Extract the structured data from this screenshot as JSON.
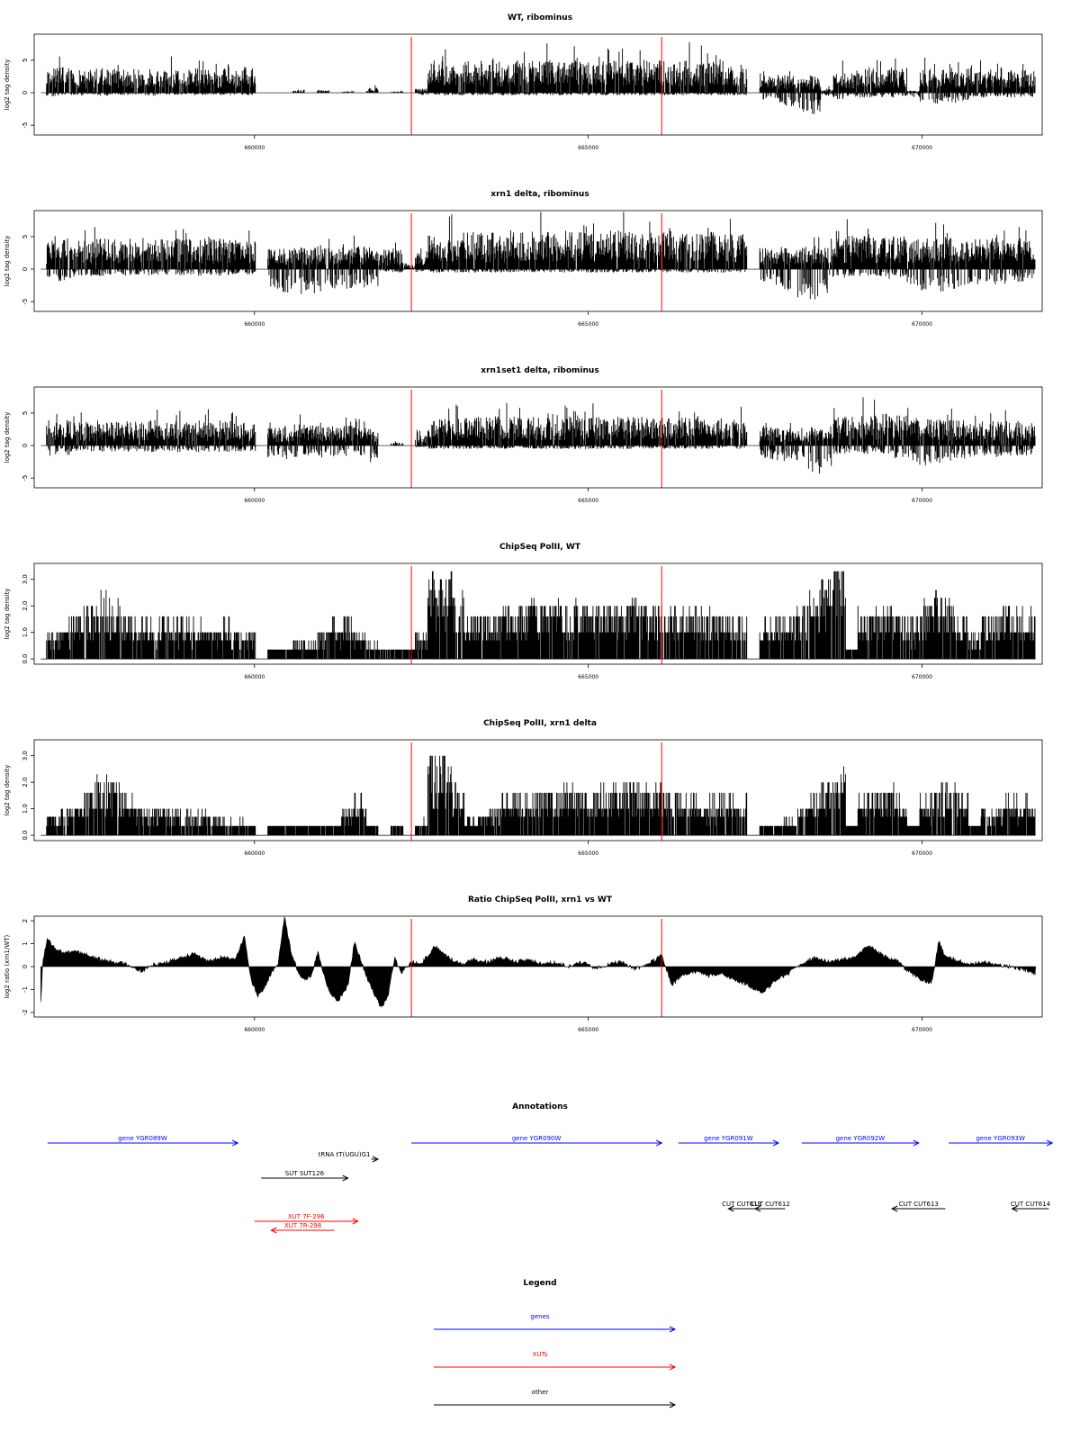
{
  "chart_data": [
    {
      "type": "bar",
      "title": "WT, ribominus",
      "ylabel": "log2 tag density",
      "xlabel": "",
      "xlim": [
        656700,
        671800
      ],
      "ylim": [
        -6.5,
        9.0
      ],
      "yticks": [
        -5,
        0,
        5
      ],
      "ytick_labels": [
        "-5",
        "0",
        "5"
      ],
      "xticks": [
        660000,
        665000,
        670000
      ],
      "xtick_labels": [
        "660000",
        "665000",
        "670000"
      ],
      "vlines": [
        662350,
        666100
      ],
      "vline_color": "#ff0000",
      "density": [
        0.0,
        3.5,
        3.7,
        3.3,
        3.0,
        3.5,
        3.2,
        3.4,
        3.3,
        3.5,
        3.2,
        3.4,
        3.3,
        3.5,
        3.1,
        3.4,
        3.3,
        3.5,
        0.0,
        0.0,
        0.0,
        0.3,
        0.0,
        0.5,
        0.0,
        0.2,
        0.0,
        0.7,
        0.0,
        0.2,
        0.0,
        0.6,
        4.1,
        4.4,
        4.2,
        4.7,
        4.5,
        4.6,
        4.5,
        4.7,
        4.5,
        4.6,
        4.5,
        4.7,
        4.5,
        4.6,
        4.5,
        4.7,
        4.5,
        4.6,
        4.5,
        4.7,
        4.5,
        4.6,
        4.5,
        4.7,
        4.5,
        4.0,
        0.0,
        2.5,
        2.3,
        2.5,
        2.4,
        2.5,
        0.6,
        3.5,
        3.3,
        3.6,
        3.4,
        3.5,
        3.4,
        0.3,
        3.7,
        3.4,
        3.6,
        3.4,
        3.5,
        3.4,
        3.6,
        3.3,
        3.5,
        3.2
      ],
      "negative": [
        0.0,
        0.4,
        0.2,
        0.3,
        0.2,
        0.4,
        0.2,
        0.3,
        0.2,
        0.4,
        0.2,
        0.3,
        0.2,
        0.3,
        0.2,
        0.3,
        0.2,
        0.3,
        0.0,
        0.0,
        0.0,
        0.0,
        0.0,
        0.0,
        0.0,
        0.0,
        0.0,
        0.0,
        0.0,
        0.0,
        0.0,
        0.3,
        0.3,
        0.3,
        0.3,
        0.3,
        0.3,
        0.3,
        0.3,
        0.3,
        0.3,
        0.3,
        0.3,
        0.3,
        0.3,
        0.3,
        0.3,
        0.3,
        0.3,
        0.3,
        0.3,
        0.3,
        0.3,
        0.3,
        0.3,
        0.3,
        0.3,
        0.3,
        0.0,
        0.9,
        1.2,
        1.6,
        2.4,
        2.6,
        0.4,
        0.8,
        0.5,
        0.6,
        0.5,
        0.6,
        0.4,
        0.6,
        1.2,
        1.4,
        1.3,
        1.0,
        0.8,
        0.6,
        0.5,
        0.6,
        0.5,
        0.5
      ],
      "peak_max": 9.0,
      "peak_min": -4.0
    },
    {
      "type": "bar",
      "title": "xrn1 delta, ribominus",
      "ylabel": "log2 tag density",
      "xlabel": "",
      "xlim": [
        656700,
        671800
      ],
      "ylim": [
        -6.5,
        9.0
      ],
      "yticks": [
        -5,
        0,
        5
      ],
      "ytick_labels": [
        "-5",
        "0",
        "5"
      ],
      "xticks": [
        660000,
        665000,
        670000
      ],
      "xtick_labels": [
        "660000",
        "665000",
        "670000"
      ],
      "vlines": [
        662350,
        666100
      ],
      "vline_color": "#ff0000",
      "density": [
        0.0,
        4.0,
        4.3,
        4.2,
        4.1,
        4.3,
        4.2,
        4.3,
        4.2,
        4.3,
        4.2,
        4.3,
        4.2,
        4.3,
        4.2,
        4.3,
        4.2,
        4.2,
        0.0,
        2.8,
        3.0,
        3.2,
        3.1,
        3.2,
        3.0,
        3.1,
        3.2,
        3.0,
        2.8,
        2.9,
        0.6,
        2.9,
        5.0,
        5.3,
        5.1,
        5.4,
        5.2,
        5.3,
        5.2,
        5.4,
        5.2,
        5.3,
        5.2,
        5.4,
        5.2,
        5.3,
        5.2,
        5.4,
        5.2,
        5.3,
        5.2,
        5.4,
        5.2,
        5.3,
        5.2,
        5.4,
        5.1,
        5.0,
        0.0,
        3.0,
        3.2,
        3.1,
        3.3,
        3.2,
        3.1,
        4.5,
        4.8,
        4.9,
        4.8,
        4.9,
        4.7,
        4.2,
        4.4,
        4.3,
        4.5,
        4.2,
        4.4,
        4.3,
        4.4,
        4.2,
        4.3,
        4.1
      ],
      "negative": [
        0.0,
        1.2,
        1.5,
        0.9,
        0.8,
        0.9,
        0.7,
        0.8,
        0.7,
        0.8,
        0.7,
        0.8,
        0.7,
        0.8,
        0.7,
        0.8,
        0.7,
        0.7,
        0.0,
        2.4,
        2.8,
        3.2,
        3.0,
        2.8,
        2.5,
        2.4,
        2.2,
        2.0,
        0.3,
        0.4,
        0.0,
        0.4,
        0.4,
        0.4,
        0.4,
        0.4,
        0.4,
        0.4,
        0.4,
        0.4,
        0.4,
        0.4,
        0.4,
        0.4,
        0.4,
        0.4,
        0.4,
        0.4,
        0.4,
        0.4,
        0.4,
        0.4,
        0.4,
        0.4,
        0.4,
        0.4,
        0.4,
        0.4,
        0.0,
        1.6,
        2.1,
        2.6,
        3.4,
        3.6,
        3.0,
        1.2,
        0.9,
        1.0,
        0.9,
        1.2,
        1.0,
        2.2,
        2.6,
        2.8,
        2.4,
        2.2,
        1.8,
        1.6,
        1.8,
        1.5,
        1.6,
        1.4
      ],
      "peak_max": 8.8,
      "peak_min": -5.8
    },
    {
      "type": "bar",
      "title": "xrn1set1 delta, ribominus",
      "ylabel": "log2 tag density",
      "xlabel": "",
      "xlim": [
        656700,
        671800
      ],
      "ylim": [
        -6.5,
        9.0
      ],
      "yticks": [
        -5,
        0,
        5
      ],
      "ytick_labels": [
        "-5",
        "0",
        "5"
      ],
      "xticks": [
        660000,
        665000,
        670000
      ],
      "xtick_labels": [
        "660000",
        "665000",
        "670000"
      ],
      "vlines": [
        662350,
        666100
      ],
      "vline_color": "#ff0000",
      "density": [
        0.0,
        3.3,
        3.6,
        3.4,
        3.3,
        3.5,
        3.4,
        3.5,
        3.4,
        3.6,
        3.4,
        3.5,
        3.4,
        3.5,
        3.3,
        3.5,
        3.3,
        3.2,
        0.0,
        2.6,
        2.8,
        3.0,
        2.9,
        2.8,
        2.7,
        2.8,
        2.6,
        2.4,
        0.0,
        0.4,
        0.0,
        1.5,
        3.8,
        4.0,
        3.9,
        4.1,
        4.0,
        4.1,
        3.9,
        4.1,
        4.0,
        4.1,
        3.9,
        4.1,
        4.0,
        4.1,
        3.9,
        4.1,
        4.0,
        4.1,
        3.9,
        4.1,
        4.0,
        4.1,
        3.9,
        4.0,
        3.8,
        3.6,
        0.0,
        2.6,
        2.5,
        2.7,
        2.6,
        2.8,
        2.7,
        4.0,
        4.3,
        4.5,
        4.4,
        4.5,
        4.3,
        3.6,
        3.7,
        3.8,
        3.7,
        3.6,
        3.5,
        3.4,
        3.5,
        3.4,
        3.5,
        3.3
      ],
      "negative": [
        0.0,
        1.4,
        1.2,
        0.8,
        0.7,
        0.8,
        0.7,
        0.8,
        0.7,
        0.8,
        0.7,
        0.8,
        0.7,
        0.8,
        0.7,
        0.8,
        0.7,
        0.7,
        0.0,
        1.4,
        1.6,
        1.4,
        1.3,
        1.5,
        1.4,
        1.3,
        1.2,
        2.0,
        0.0,
        0.0,
        0.0,
        0.2,
        0.4,
        0.4,
        0.4,
        0.4,
        0.4,
        0.4,
        0.4,
        0.4,
        0.4,
        0.4,
        0.4,
        0.4,
        0.4,
        0.4,
        0.4,
        0.4,
        0.4,
        0.4,
        0.4,
        0.4,
        0.4,
        0.4,
        0.4,
        0.4,
        0.4,
        0.4,
        0.0,
        1.6,
        1.8,
        2.2,
        2.8,
        3.4,
        2.6,
        1.0,
        0.8,
        1.0,
        0.9,
        1.0,
        1.6,
        2.0,
        2.4,
        2.2,
        1.8,
        1.6,
        1.4,
        1.2,
        1.4,
        1.2,
        1.3,
        1.1
      ],
      "peak_max": 8.2,
      "peak_min": -6.0
    },
    {
      "type": "bar",
      "title": "ChipSeq PolII, WT",
      "ylabel": "log2 tag density",
      "xlabel": "",
      "xlim": [
        656700,
        671800
      ],
      "ylim": [
        -0.2,
        3.6
      ],
      "yticks": [
        0.0,
        1.0,
        2.0,
        3.0
      ],
      "ytick_labels": [
        "0.0",
        "1.0",
        "2.0",
        "3.0"
      ],
      "xticks": [
        660000,
        665000,
        670000
      ],
      "xtick_labels": [
        "660000",
        "665000",
        "670000"
      ],
      "vlines": [
        662350,
        666100
      ],
      "vline_color": "#ff0000",
      "density": [
        0.0,
        0.9,
        1.1,
        1.4,
        1.8,
        2.1,
        1.9,
        1.5,
        1.3,
        1.2,
        1.3,
        1.2,
        1.3,
        1.2,
        1.1,
        1.2,
        1.0,
        0.9,
        0.0,
        0.4,
        0.3,
        0.6,
        0.5,
        1.1,
        1.2,
        1.3,
        1.0,
        0.5,
        0.2,
        0.3,
        0.4,
        0.9,
        3.0,
        2.8,
        2.2,
        1.3,
        1.4,
        1.5,
        1.7,
        1.8,
        1.9,
        1.8,
        1.9,
        1.8,
        1.9,
        1.8,
        1.9,
        1.8,
        1.9,
        1.8,
        1.9,
        1.8,
        1.8,
        1.7,
        1.6,
        1.6,
        1.5,
        1.4,
        0.0,
        1.2,
        1.3,
        1.4,
        1.8,
        2.2,
        2.6,
        3.2,
        0.4,
        1.6,
        1.8,
        1.6,
        1.4,
        1.2,
        1.8,
        2.1,
        2.0,
        1.4,
        0.8,
        1.3,
        1.6,
        1.8,
        1.7,
        1.6
      ],
      "negative": [],
      "peak_max": 3.5,
      "peak_min": 0.0
    },
    {
      "type": "bar",
      "title": "ChipSeq PolII, xrn1 delta",
      "ylabel": "log2 tag density",
      "xlabel": "",
      "xlim": [
        656700,
        671800
      ],
      "ylim": [
        -0.2,
        3.6
      ],
      "yticks": [
        0.0,
        1.0,
        2.0,
        3.0
      ],
      "ytick_labels": [
        "0.0",
        "1.0",
        "2.0",
        "3.0"
      ],
      "xticks": [
        660000,
        665000,
        670000
      ],
      "xtick_labels": [
        "660000",
        "665000",
        "670000"
      ],
      "vlines": [
        662350,
        666100
      ],
      "vline_color": "#ff0000",
      "density": [
        0.0,
        0.7,
        0.9,
        1.2,
        1.6,
        2.0,
        1.8,
        1.4,
        1.1,
        1.0,
        1.1,
        0.9,
        0.8,
        0.8,
        0.7,
        0.6,
        0.5,
        0.4,
        0.0,
        0.3,
        0.2,
        0.2,
        0.2,
        0.3,
        0.4,
        1.0,
        1.2,
        0.3,
        0.0,
        0.2,
        0.0,
        0.5,
        2.8,
        2.6,
        1.8,
        0.6,
        0.7,
        1.0,
        1.2,
        1.4,
        1.5,
        1.4,
        1.5,
        1.6,
        1.5,
        1.4,
        1.6,
        1.7,
        1.8,
        1.7,
        1.6,
        1.5,
        1.4,
        1.3,
        1.2,
        1.2,
        1.3,
        1.2,
        0.0,
        0.3,
        0.4,
        0.5,
        1.2,
        1.5,
        1.8,
        2.1,
        0.2,
        1.3,
        1.5,
        1.6,
        1.2,
        0.4,
        1.2,
        1.6,
        1.8,
        1.4,
        0.2,
        0.8,
        1.0,
        1.3,
        1.2,
        1.1
      ],
      "negative": [],
      "peak_max": 3.0,
      "peak_min": 0.0
    },
    {
      "type": "area",
      "title": "Ratio ChipSeq PolII, xrn1 vs WT",
      "ylabel": "log2 ratio (xrn1/WT)",
      "xlabel": "",
      "xlim": [
        656700,
        671800
      ],
      "ylim": [
        -2.2,
        2.2
      ],
      "yticks": [
        -2,
        -1,
        0,
        1,
        2
      ],
      "ytick_labels": [
        "-2",
        "-1",
        "0",
        "1",
        "2"
      ],
      "xticks": [
        660000,
        665000,
        670000
      ],
      "xtick_labels": [
        "660000",
        "665000",
        "670000"
      ],
      "vlines": [
        662350,
        666100
      ],
      "vline_color": "#ff0000",
      "x": [
        656800,
        656830,
        656900,
        657000,
        657150,
        657300,
        657500,
        657700,
        657900,
        658100,
        658300,
        658500,
        658700,
        658900,
        659100,
        659300,
        659500,
        659700,
        659850,
        659950,
        660050,
        660150,
        660250,
        660350,
        660450,
        660550,
        660650,
        660750,
        660850,
        660950,
        661100,
        661250,
        661400,
        661500,
        661600,
        661700,
        661800,
        661900,
        662000,
        662100,
        662200,
        662350,
        662500,
        662700,
        662900,
        663100,
        663300,
        663500,
        663700,
        663900,
        664100,
        664300,
        664500,
        664700,
        664900,
        665100,
        665300,
        665500,
        665700,
        665900,
        666100,
        666250,
        666400,
        666600,
        666800,
        667000,
        667200,
        667400,
        667600,
        667800,
        668000,
        668200,
        668400,
        668600,
        668800,
        669000,
        669200,
        669400,
        669600,
        669800,
        670000,
        670150,
        670250,
        670350,
        670500,
        670700,
        670900,
        671100,
        671300,
        671500,
        671700
      ],
      "values": [
        -1.6,
        0.3,
        1.2,
        0.8,
        0.6,
        0.7,
        0.5,
        0.3,
        0.2,
        0.1,
        -0.2,
        0.1,
        0.2,
        0.4,
        0.6,
        0.2,
        0.4,
        0.3,
        1.3,
        -0.6,
        -1.3,
        -0.9,
        -0.3,
        0.1,
        2.2,
        0.6,
        -0.2,
        -0.6,
        -0.4,
        0.6,
        -1.0,
        -1.5,
        -0.8,
        1.1,
        0.2,
        -0.6,
        -1.2,
        -1.8,
        -1.3,
        0.4,
        -0.3,
        0.2,
        0.1,
        0.9,
        0.4,
        0.1,
        0.3,
        0.2,
        0.4,
        0.2,
        0.3,
        0.1,
        0.2,
        0.0,
        0.2,
        -0.1,
        0.1,
        0.2,
        -0.1,
        0.1,
        0.5,
        -0.8,
        -0.4,
        -0.2,
        -0.4,
        -0.3,
        -0.6,
        -0.8,
        -1.2,
        -0.6,
        -0.3,
        0.1,
        0.4,
        0.2,
        0.3,
        0.4,
        0.9,
        0.5,
        0.3,
        -0.2,
        -0.6,
        -0.7,
        1.1,
        0.4,
        0.3,
        0.1,
        0.2,
        0.1,
        0.0,
        -0.1,
        -0.3
      ]
    },
    {
      "type": "annotations",
      "title": "Annotations",
      "xlim": [
        656700,
        671800
      ],
      "features": [
        {
          "label": "gene YGR089W",
          "start": 656900,
          "end": 659750,
          "row": 0,
          "strand": "+",
          "color": "#0000ff"
        },
        {
          "label": "gene YGR090W",
          "start": 662350,
          "end": 666100,
          "row": 0,
          "strand": "+",
          "color": "#0000ff"
        },
        {
          "label": "gene YGR091W",
          "start": 666350,
          "end": 667850,
          "row": 0,
          "strand": "+",
          "color": "#0000ff"
        },
        {
          "label": "gene YGR092W",
          "start": 668200,
          "end": 669950,
          "row": 0,
          "strand": "+",
          "color": "#0000ff"
        },
        {
          "label": "gene YGR093W",
          "start": 670400,
          "end": 671950,
          "row": 0,
          "strand": "+",
          "color": "#0000ff"
        },
        {
          "label": "tRNA tT(UGU)G1",
          "start": 661750,
          "end": 661850,
          "row": 1,
          "strand": "+",
          "color": "#000000"
        },
        {
          "label": "SUT SUT126",
          "start": 660100,
          "end": 661400,
          "row": 2,
          "strand": "+",
          "color": "#000000"
        },
        {
          "label": "CUT CUT611",
          "start": 667100,
          "end": 667500,
          "row": 3,
          "strand": "-",
          "color": "#000000"
        },
        {
          "label": "CUT CUT612",
          "start": 667500,
          "end": 667950,
          "row": 3,
          "strand": "-",
          "color": "#000000"
        },
        {
          "label": "CUT CUT613",
          "start": 669550,
          "end": 670350,
          "row": 3,
          "strand": "-",
          "color": "#000000"
        },
        {
          "label": "CUT CUT614",
          "start": 671350,
          "end": 671900,
          "row": 3,
          "strand": "-",
          "color": "#000000"
        },
        {
          "label": "XUT 7F-296",
          "start": 660000,
          "end": 661550,
          "row": 4,
          "strand": "+",
          "color": "#ff0000"
        },
        {
          "label": "XUT 7R-298",
          "start": 660250,
          "end": 661200,
          "row": 5,
          "strand": "-",
          "color": "#ff0000"
        }
      ]
    },
    {
      "type": "legend",
      "title": "Legend",
      "entries": [
        {
          "label": "genes",
          "color": "#0000ff"
        },
        {
          "label": "XUTs",
          "color": "#ff0000"
        },
        {
          "label": "other",
          "color": "#000000"
        }
      ]
    }
  ]
}
